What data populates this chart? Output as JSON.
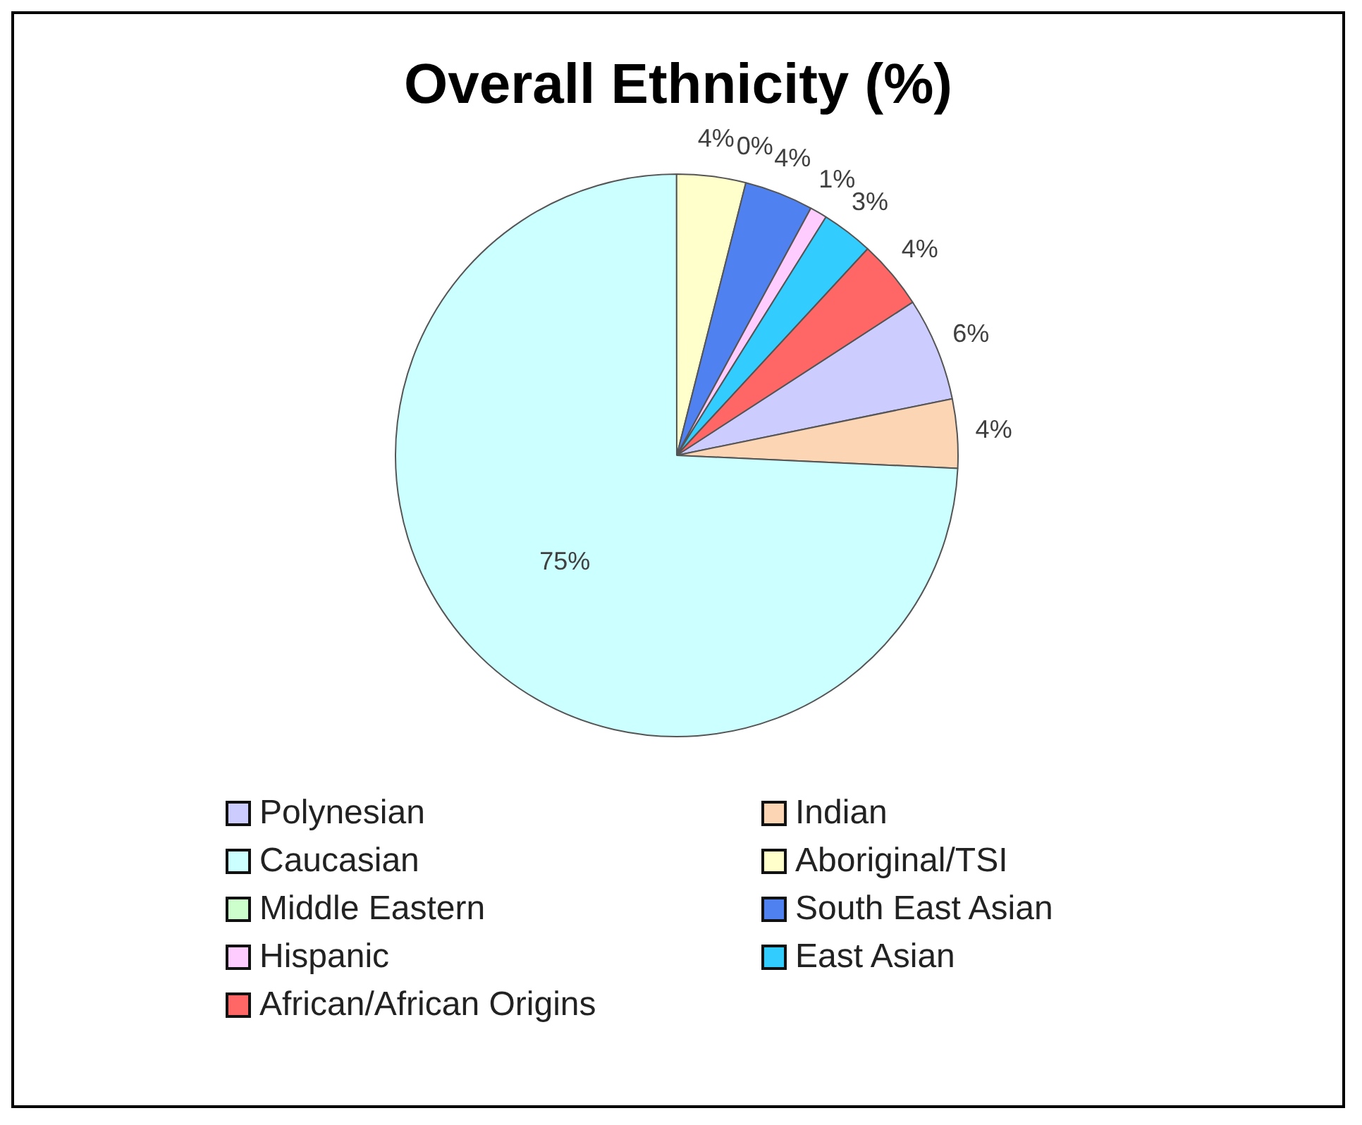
{
  "chart_data": {
    "type": "pie",
    "title": "Overall Ethnicity (%)",
    "categories": [
      "Polynesian",
      "Indian",
      "Caucasian",
      "Aboriginal/TSI",
      "Middle Eastern",
      "South East Asian",
      "Hispanic",
      "East Asian",
      "African/African Origins"
    ],
    "values": [
      6,
      4,
      75,
      4,
      0,
      4,
      1,
      3,
      4
    ],
    "value_labels": [
      "6%",
      "4%",
      "75%",
      "4%",
      "0%",
      "4%",
      "1%",
      "3%",
      "4%"
    ],
    "colors": [
      "#ccccff",
      "#fcd5b5",
      "#ccffff",
      "#ffffcc",
      "#ccffcc",
      "#4f81f0",
      "#ffccff",
      "#33ccff",
      "#ff6666"
    ],
    "legend": "bottom"
  }
}
